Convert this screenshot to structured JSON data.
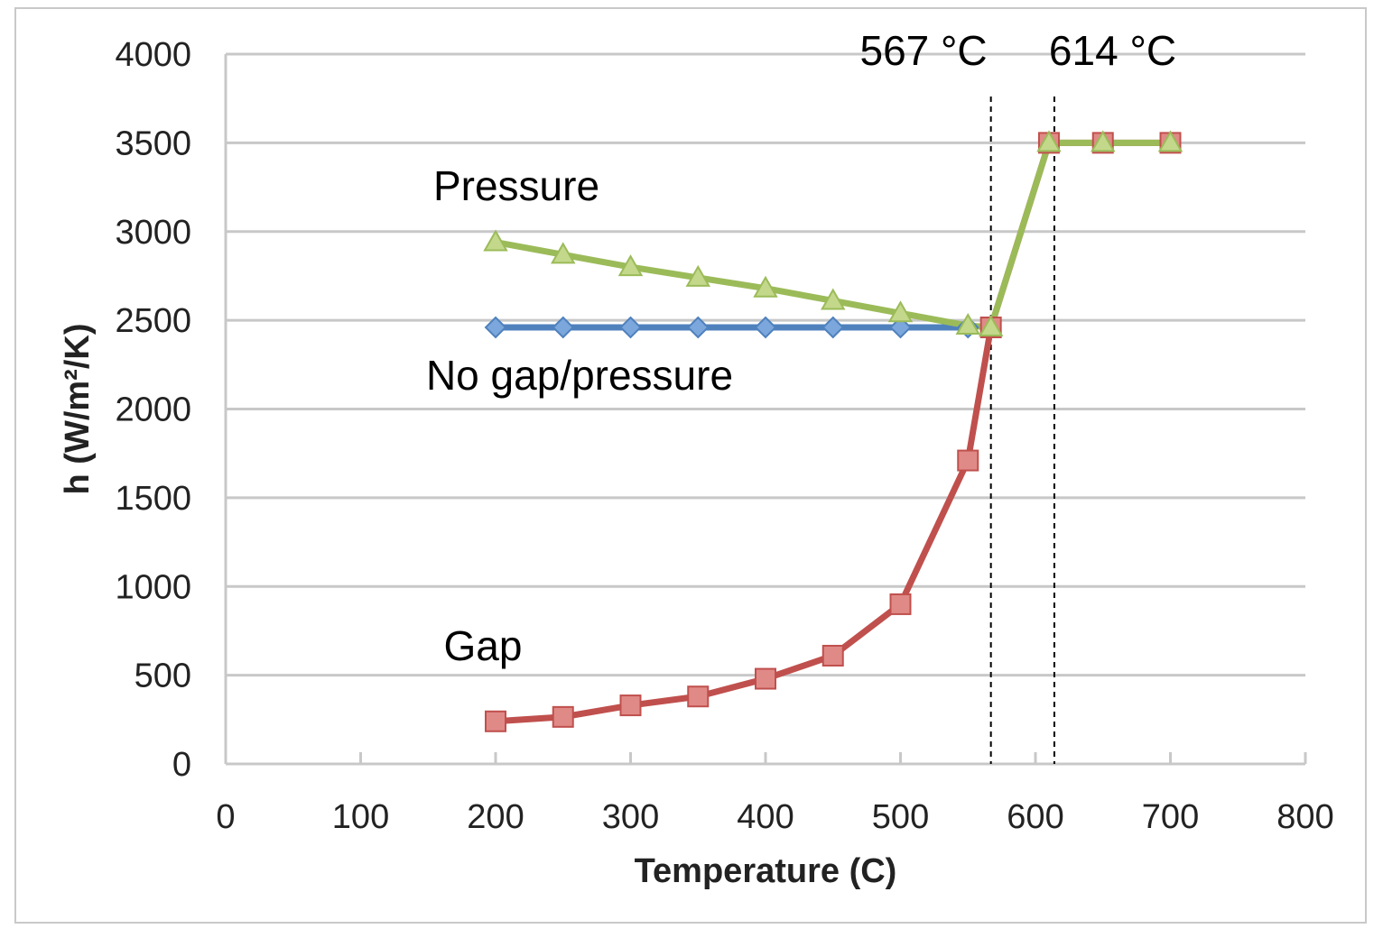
{
  "chart_data": {
    "type": "line",
    "xlabel": "Temperature (C)",
    "ylabel": "h (W/m²/K)",
    "xlim": [
      0,
      800
    ],
    "ylim": [
      0,
      4000
    ],
    "xticks": [
      0,
      100,
      200,
      300,
      400,
      500,
      600,
      700,
      800
    ],
    "yticks": [
      0,
      500,
      1000,
      1500,
      2000,
      2500,
      3000,
      3500,
      4000
    ],
    "grid": "horizontal",
    "series": [
      {
        "name": "No gap/pressure",
        "marker": "diamond",
        "color": "#4f81bd",
        "markerFill": "#7ba7dc",
        "x": [
          200,
          250,
          300,
          350,
          400,
          450,
          500,
          550
        ],
        "y": [
          2460,
          2460,
          2460,
          2460,
          2460,
          2460,
          2460,
          2460
        ]
      },
      {
        "name": "Gap",
        "marker": "square",
        "color": "#c0504d",
        "markerFill": "#e08a87",
        "x": [
          200,
          250,
          300,
          350,
          400,
          450,
          500,
          550,
          567,
          610,
          650,
          700
        ],
        "y": [
          240,
          265,
          330,
          380,
          480,
          610,
          900,
          1710,
          2460,
          3500,
          3500,
          3500
        ]
      },
      {
        "name": "Pressure",
        "marker": "triangle",
        "color": "#9bbb59",
        "markerFill": "#c3d88a",
        "x": [
          200,
          250,
          300,
          350,
          400,
          450,
          500,
          550,
          567,
          610,
          650,
          700
        ],
        "y": [
          2940,
          2870,
          2800,
          2740,
          2680,
          2610,
          2540,
          2470,
          2460,
          3500,
          3500,
          3500
        ]
      }
    ],
    "vlines": [
      {
        "x": 567,
        "label": "567 °C"
      },
      {
        "x": 614,
        "label": "614 °C"
      }
    ],
    "annotations": [
      {
        "text": "Pressure",
        "series": "Pressure"
      },
      {
        "text": "No gap/pressure",
        "series": "No gap/pressure"
      },
      {
        "text": "Gap",
        "series": "Gap"
      }
    ]
  }
}
